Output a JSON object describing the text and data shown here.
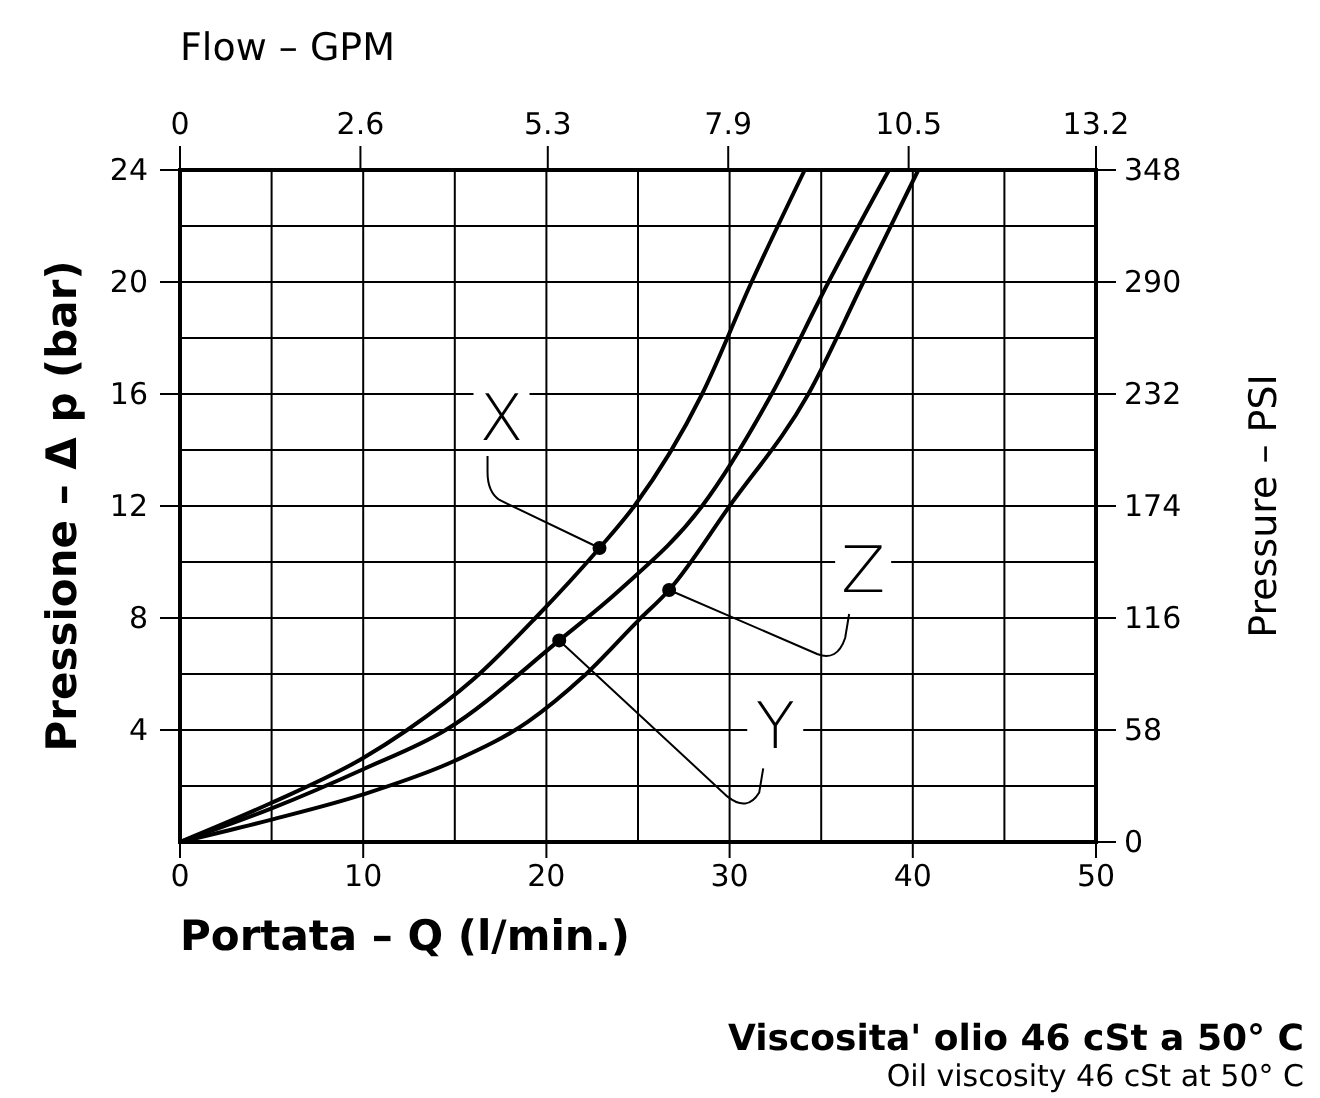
{
  "chart_data": {
    "type": "line",
    "xlabel": "Portata  –  Q  (l/min.)",
    "ylabel": "Pressione  –  Δ p  (bar)",
    "y2label": "Pressure  –  PSI",
    "x2label": "Flow  –  GPM",
    "xlim": [
      0,
      50
    ],
    "xticks": [
      0,
      {
        "value": 5,
        "label": null
      },
      10,
      {
        "value": 15,
        "label": null
      },
      20,
      {
        "value": 25,
        "label": null
      },
      30,
      {
        "value": 35,
        "label": null
      },
      40,
      {
        "value": 45,
        "label": null
      },
      50
    ],
    "ylim": [
      0,
      24
    ],
    "yticks": [
      {
        "value": 0,
        "label": null
      },
      {
        "value": 2,
        "label": null
      },
      4,
      {
        "value": 6,
        "label": null
      },
      8,
      {
        "value": 10,
        "label": null
      },
      12,
      {
        "value": 14,
        "label": null
      },
      16,
      {
        "value": 18,
        "label": null
      },
      20,
      {
        "value": 22,
        "label": null
      },
      24
    ],
    "x2lim": [
      0,
      13.2
    ],
    "x2ticks": [
      0,
      2.6,
      5.3,
      7.9,
      10.5,
      13.2
    ],
    "y2lim": [
      0,
      348
    ],
    "y2ticks": [
      0,
      58,
      116,
      174,
      232,
      290,
      348
    ],
    "grid": true,
    "line_style": "solid",
    "marker": "none",
    "series": [
      {
        "color": "#000000",
        "x": [
          0,
          5,
          10,
          12.4,
          16,
          19.4,
          22.9,
          24.8,
          28.5,
          31.2,
          34.1
        ],
        "values": [
          0,
          1.4,
          3,
          4,
          5.8,
          8,
          10.5,
          12,
          16,
          20,
          24
        ]
      },
      {
        "color": "#000000",
        "x": [
          0,
          5,
          10,
          14.5,
          20.7,
          24,
          28.5,
          32.3,
          35.4,
          38.7
        ],
        "values": [
          0,
          1.2,
          2.6,
          4,
          7.2,
          9,
          12,
          16,
          20,
          24
        ]
      },
      {
        "color": "#000000",
        "x": [
          0,
          5,
          10,
          15,
          19,
          22,
          25,
          26.7,
          30,
          34.3,
          37.3,
          40.3
        ],
        "values": [
          0,
          0.8,
          1.7,
          2.9,
          4.3,
          5.9,
          7.9,
          9,
          12,
          16,
          20,
          24
        ]
      }
    ],
    "annotations": [
      {
        "text": "X",
        "x": 22.9,
        "y": 10.5
      },
      {
        "text": "Y",
        "x": 20.7,
        "y": 7.2
      },
      {
        "text": "Z",
        "x": 26.7,
        "y": 9
      },
      "Viscosita' olio 46 cSt a 50° C",
      "Oil viscosity 46 cSt at 50° C"
    ]
  }
}
